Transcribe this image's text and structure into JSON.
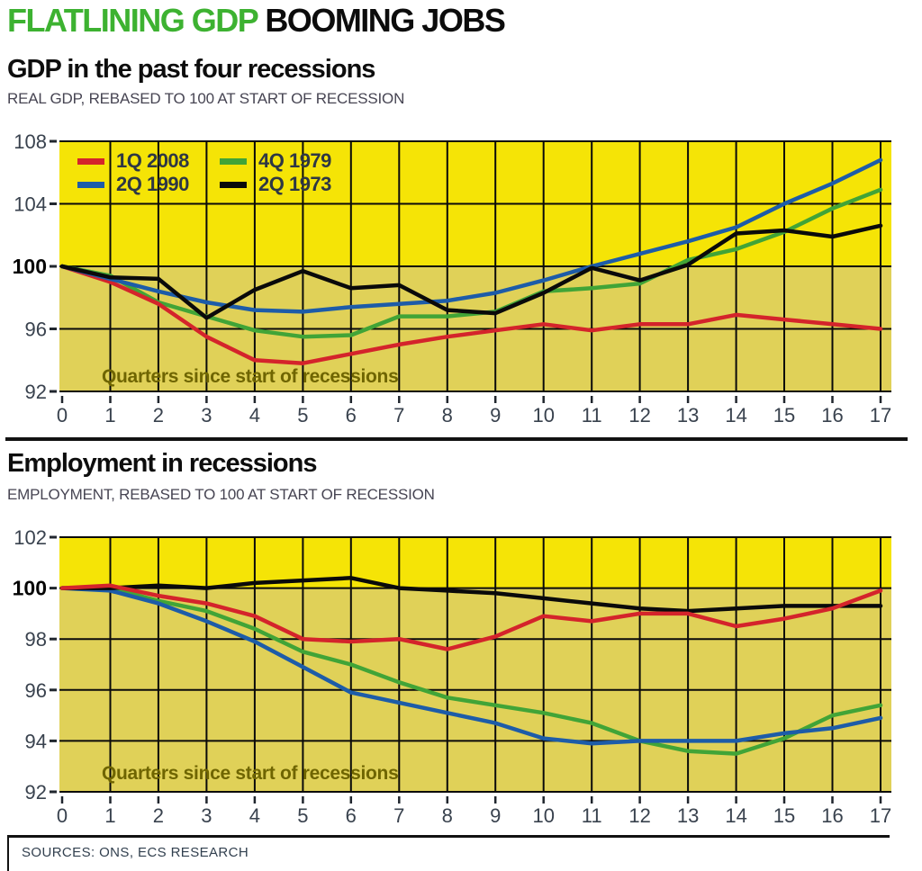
{
  "header": {
    "title_green": "FLATLINING GDP",
    "title_black": "BOOMING JOBS"
  },
  "colors": {
    "bright_yellow": "#f5e406",
    "dark_yellow": "#e0d158",
    "red": "#d4242b",
    "blue": "#1d5ca8",
    "green": "#41a437",
    "black": "#0a0a0a",
    "axis_label": "#39424e",
    "annotation": "#6f6500",
    "title_green": "#3db231"
  },
  "chart_data": [
    {
      "type": "line",
      "title": "GDP in the past four recessions",
      "subtitle": "REAL GDP, REBASED TO 100 AT START OF RECESSION",
      "annotation": "Quarters since start of recessions",
      "x": [
        0,
        1,
        2,
        3,
        4,
        5,
        6,
        7,
        8,
        9,
        10,
        11,
        12,
        13,
        14,
        15,
        16,
        17
      ],
      "ylim": [
        92,
        108
      ],
      "yticks": [
        92,
        96,
        100,
        104,
        108
      ],
      "bold_ytick": 100,
      "band_split_at": 100,
      "legend_position": "top-left",
      "series": [
        {
          "name": "1Q 2008",
          "color": "#d4242b",
          "values": [
            100,
            99.0,
            97.6,
            95.5,
            94.0,
            93.8,
            94.4,
            95.0,
            95.5,
            95.9,
            96.3,
            95.9,
            96.3,
            96.3,
            96.9,
            96.6,
            96.3,
            96.0
          ]
        },
        {
          "name": "2Q 1990",
          "color": "#1d5ca8",
          "values": [
            100,
            99.2,
            98.4,
            97.7,
            97.2,
            97.1,
            97.4,
            97.6,
            97.8,
            98.3,
            99.1,
            100.0,
            100.8,
            101.6,
            102.5,
            104.0,
            105.3,
            106.8
          ]
        },
        {
          "name": "4Q 1979",
          "color": "#41a437",
          "values": [
            100,
            99.4,
            97.7,
            96.8,
            95.9,
            95.5,
            95.6,
            96.8,
            96.8,
            97.1,
            98.4,
            98.6,
            98.9,
            100.4,
            101.1,
            102.2,
            103.7,
            104.9
          ]
        },
        {
          "name": "2Q 1973",
          "color": "#0a0a0a",
          "values": [
            100,
            99.3,
            99.2,
            96.7,
            98.5,
            99.7,
            98.6,
            98.8,
            97.2,
            97.0,
            98.3,
            99.9,
            99.1,
            100.1,
            102.1,
            102.3,
            101.9,
            102.6
          ]
        }
      ]
    },
    {
      "type": "line",
      "title": "Employment in recessions",
      "subtitle": "EMPLOYMENT, REBASED TO 100 AT START OF RECESSION",
      "annotation": "Quarters since start of recessions",
      "x": [
        0,
        1,
        2,
        3,
        4,
        5,
        6,
        7,
        8,
        9,
        10,
        11,
        12,
        13,
        14,
        15,
        16,
        17
      ],
      "ylim": [
        92,
        102
      ],
      "yticks": [
        92,
        94,
        96,
        98,
        100,
        102
      ],
      "bold_ytick": 100,
      "band_split_at": 100,
      "series": [
        {
          "name": "1Q 2008",
          "color": "#d4242b",
          "values": [
            100,
            100.1,
            99.7,
            99.4,
            98.9,
            98.0,
            97.9,
            98.0,
            97.6,
            98.1,
            98.9,
            98.7,
            99.0,
            99.0,
            98.5,
            98.8,
            99.2,
            99.9
          ]
        },
        {
          "name": "2Q 1990",
          "color": "#1d5ca8",
          "values": [
            100,
            99.9,
            99.4,
            98.7,
            97.9,
            96.9,
            95.9,
            95.5,
            95.1,
            94.7,
            94.1,
            93.9,
            94.0,
            94.0,
            94.0,
            94.3,
            94.5,
            94.9
          ]
        },
        {
          "name": "4Q 1979",
          "color": "#41a437",
          "values": [
            100,
            100.0,
            99.5,
            99.1,
            98.4,
            97.5,
            97.0,
            96.3,
            95.7,
            95.4,
            95.1,
            94.7,
            94.0,
            93.6,
            93.5,
            94.1,
            95.0,
            95.4
          ]
        },
        {
          "name": "2Q 1973",
          "color": "#0a0a0a",
          "values": [
            100,
            100.0,
            100.1,
            100.0,
            100.2,
            100.3,
            100.4,
            100.0,
            99.9,
            99.8,
            99.6,
            99.4,
            99.2,
            99.1,
            99.2,
            99.3,
            99.3,
            99.3
          ]
        }
      ]
    }
  ],
  "footer": {
    "sources": "SOURCES: ONS, ECS RESEARCH"
  }
}
